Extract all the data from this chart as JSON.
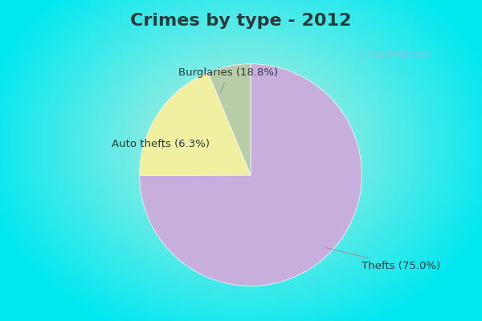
{
  "title": "Crimes by type - 2012",
  "slices": [
    {
      "label": "Thefts",
      "pct": 75.0,
      "color": "#c8aedd"
    },
    {
      "label": "Burglaries",
      "pct": 18.8,
      "color": "#f0f0a0"
    },
    {
      "label": "Auto thefts",
      "pct": 6.3,
      "color": "#b8cca8"
    }
  ],
  "bg_cyan": "#00e8f0",
  "bg_center": "#c8eedd",
  "title_fontsize": 16,
  "label_fontsize": 9.5,
  "watermark": "ⓘ City-Data.com",
  "title_color": "#2a3a3a",
  "label_color": "#2a3a3a"
}
